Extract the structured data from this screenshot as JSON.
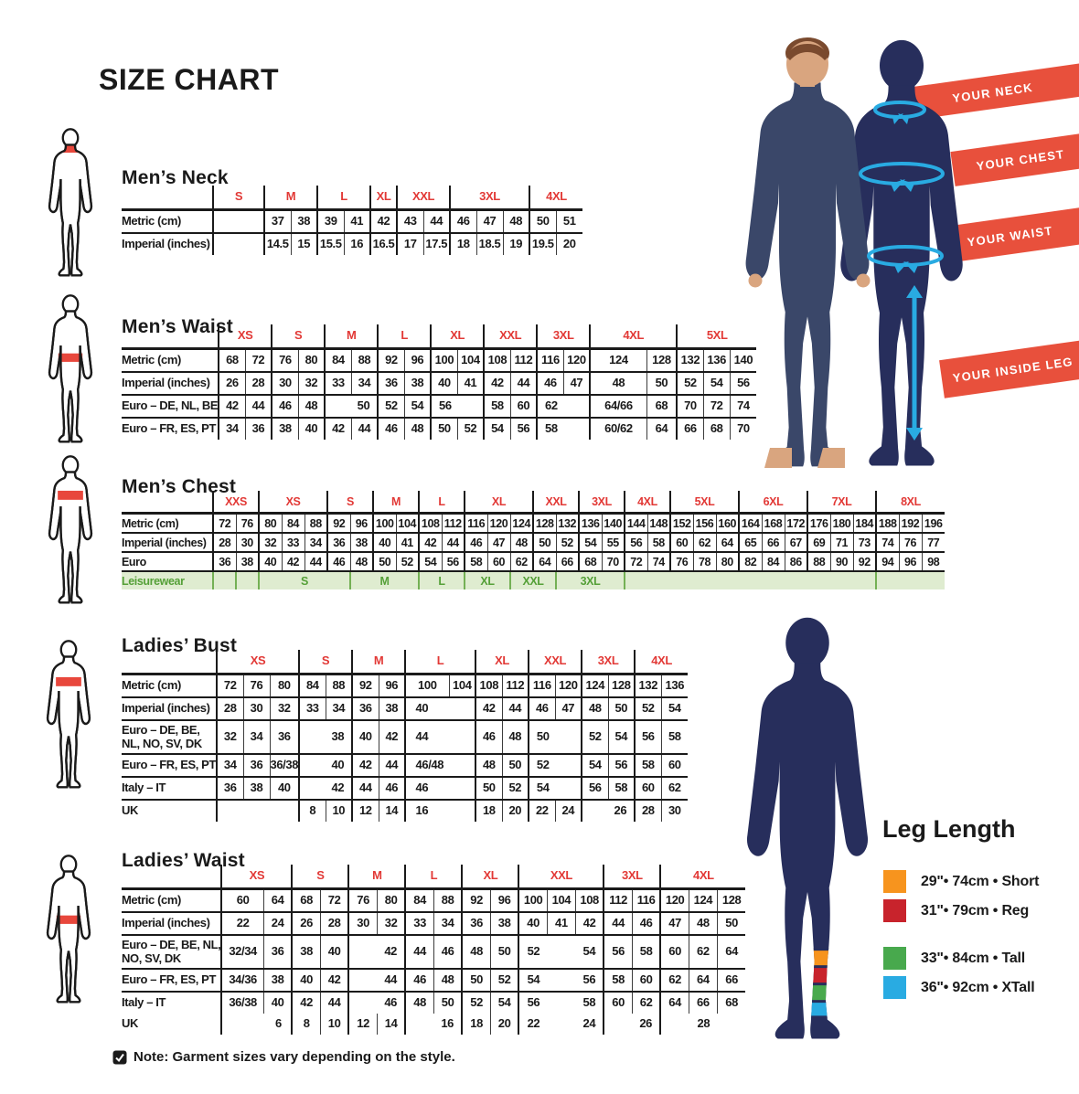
{
  "page_title": "SIZE CHART",
  "note_text": "Note: Garment sizes vary depending on the style.",
  "banners": [
    "YOUR NECK",
    "YOUR CHEST",
    "YOUR WAIST",
    "YOUR INSIDE LEG"
  ],
  "colors": {
    "table_header_red": "#e23936",
    "banner_red": "#e8503c",
    "leisure_green": "#55a038",
    "leisure_bg": "#dfecd0",
    "silhouette_navy": "#272e5c",
    "measure_cyan": "#29abe2"
  },
  "leg_length": {
    "title": "Leg Length",
    "items": [
      {
        "swatch": "orange-swatch",
        "color": "#F7941E",
        "label": "29\"• 74cm • Short"
      },
      {
        "swatch": "red-swatch",
        "color": "#C8232C",
        "label": "31\"• 79cm • Reg"
      },
      {
        "swatch": "green-swatch",
        "color": "#48A94D",
        "label": "33\"• 84cm • Tall"
      },
      {
        "swatch": "blue-swatch",
        "color": "#29ABE2",
        "label": "36\"• 92cm • XTall"
      }
    ]
  },
  "tables": [
    {
      "id": "mens-neck",
      "title": "Men’s Neck",
      "cls": "",
      "label_w": 100,
      "cols": [
        56,
        29,
        29,
        29,
        29,
        29,
        29,
        29,
        29,
        29,
        29,
        29,
        29
      ],
      "groups": [
        {
          "label": "S",
          "span": 1
        },
        {
          "label": "M",
          "span": 2
        },
        {
          "label": "L",
          "span": 2
        },
        {
          "label": "XL",
          "span": 1
        },
        {
          "label": "XXL",
          "span": 2
        },
        {
          "label": "3XL",
          "span": 3
        },
        {
          "label": "4XL",
          "span": 2
        }
      ],
      "rows": [
        {
          "label": "Metric (cm)",
          "cells": [
            "",
            "37",
            "38",
            "39",
            "41",
            "42",
            "43",
            "44",
            "46",
            "47",
            "48",
            "50",
            "51"
          ]
        },
        {
          "label": "Imperial (inches)",
          "cells": [
            "",
            "14.5",
            "15",
            "15.5",
            "16",
            "16.5",
            "17",
            "17.5",
            "18",
            "18.5",
            "19",
            "19.5",
            "20"
          ]
        }
      ]
    },
    {
      "id": "mens-waist",
      "title": "Men’s Waist",
      "cls": "",
      "label_w": 95,
      "cols": [
        29,
        29,
        29,
        29,
        29,
        29,
        29,
        29,
        29,
        29,
        29,
        29,
        29,
        29,
        62,
        33,
        29,
        29,
        29
      ],
      "groups": [
        {
          "label": "XS",
          "span": 2
        },
        {
          "label": "S",
          "span": 2
        },
        {
          "label": "M",
          "span": 2
        },
        {
          "label": "L",
          "span": 2
        },
        {
          "label": "XL",
          "span": 2
        },
        {
          "label": "XXL",
          "span": 2
        },
        {
          "label": "3XL",
          "span": 2
        },
        {
          "label": "4XL",
          "span": 2
        },
        {
          "label": "5XL",
          "span": 3
        }
      ],
      "rows": [
        {
          "label": "Metric (cm)",
          "cells": [
            "68",
            "72",
            "76",
            "80",
            "84",
            "88",
            "92",
            "96",
            "100",
            "104",
            "108",
            "112",
            "116",
            "120",
            "124",
            "128",
            "132",
            "136",
            "140"
          ]
        },
        {
          "label": "Imperial (inches)",
          "cells": [
            "26",
            "28",
            "30",
            "32",
            "33",
            "34",
            "36",
            "38",
            "40",
            "41",
            "42",
            "44",
            "46",
            "47",
            "48",
            "50",
            "52",
            "54",
            "56"
          ]
        },
        {
          "label": "Euro – DE, NL, BE",
          "cells": [
            "42",
            "44",
            "46",
            "48",
            {
              "t": "50",
              "s": 2,
              "a": "r"
            },
            "52",
            "54",
            {
              "t": "56",
              "s": 2,
              "a": "l"
            },
            "58",
            "60",
            {
              "t": "62",
              "s": 2,
              "a": "l"
            },
            "64/66",
            "68",
            "70",
            "72",
            "74"
          ]
        },
        {
          "label": "Euro – FR, ES, PT",
          "cells": [
            "34",
            "36",
            "38",
            "40",
            "42",
            "44",
            "46",
            "48",
            "50",
            "52",
            "54",
            "56",
            {
              "t": "58",
              "s": 2,
              "a": "l"
            },
            "60/62",
            "64",
            "66",
            "68",
            "70"
          ]
        }
      ]
    },
    {
      "id": "mens-chest",
      "title": "Men’s Chest",
      "cls": "small",
      "label_w": 100,
      "cols": [
        25,
        25,
        25,
        25,
        25,
        25,
        25,
        25,
        25,
        25,
        25,
        25,
        25,
        25,
        25,
        25,
        25,
        25,
        25,
        25,
        25,
        25,
        25,
        25,
        25,
        25,
        25,
        25,
        25,
        25,
        25,
        25
      ],
      "groups": [
        {
          "label": "XXS",
          "span": 2
        },
        {
          "label": "XS",
          "span": 3
        },
        {
          "label": "S",
          "span": 2
        },
        {
          "label": "M",
          "span": 2
        },
        {
          "label": "L",
          "span": 2
        },
        {
          "label": "XL",
          "span": 3
        },
        {
          "label": "XXL",
          "span": 2
        },
        {
          "label": "3XL",
          "span": 2
        },
        {
          "label": "4XL",
          "span": 2
        },
        {
          "label": "5XL",
          "span": 3
        },
        {
          "label": "6XL",
          "span": 3
        },
        {
          "label": "7XL",
          "span": 3
        },
        {
          "label": "8XL",
          "span": 3
        }
      ],
      "rows": [
        {
          "label": "Metric (cm)",
          "cells": [
            "72",
            "76",
            "80",
            "84",
            "88",
            "92",
            "96",
            "100",
            "104",
            "108",
            "112",
            "116",
            "120",
            "124",
            "128",
            "132",
            "136",
            "140",
            "144",
            "148",
            "152",
            "156",
            "160",
            "164",
            "168",
            "172",
            "176",
            "180",
            "184",
            "188",
            "192",
            "196"
          ]
        },
        {
          "label": "Imperial (inches)",
          "cells": [
            "28",
            "30",
            "32",
            "33",
            "34",
            "36",
            "38",
            "40",
            "41",
            "42",
            "44",
            "46",
            "47",
            "48",
            "50",
            "52",
            "54",
            "55",
            "56",
            "58",
            "60",
            "62",
            "64",
            "65",
            "66",
            "67",
            "69",
            "71",
            "73",
            "74",
            "76",
            "77"
          ]
        },
        {
          "label": "Euro",
          "cells": [
            "36",
            "38",
            "40",
            "42",
            "44",
            "46",
            "48",
            "50",
            "52",
            "54",
            "56",
            "58",
            "60",
            "62",
            "64",
            "66",
            "68",
            "70",
            "72",
            "74",
            "76",
            "78",
            "80",
            "82",
            "84",
            "86",
            "88",
            "90",
            "92",
            "94",
            "96",
            "98"
          ]
        },
        {
          "label": "Leisurewear",
          "cls": "leisure",
          "cells": [
            {
              "t": "",
              "s": 1
            },
            {
              "t": "",
              "s": 1
            },
            {
              "t": "S",
              "s": 4
            },
            {
              "t": "M",
              "s": 3
            },
            {
              "t": "L",
              "s": 2
            },
            {
              "t": "XL",
              "s": 2
            },
            {
              "t": "XXL",
              "s": 2
            },
            {
              "t": "3XL",
              "s": 3
            },
            {
              "t": "",
              "s": 11
            },
            {
              "t": "",
              "s": 3
            }
          ]
        }
      ]
    },
    {
      "id": "ladies-bust",
      "title": "Ladies’ Bust",
      "cls": "",
      "label_w": 97,
      "cols": [
        29,
        29,
        29,
        29,
        29,
        29,
        29,
        48,
        29,
        29,
        29,
        29,
        29,
        29,
        29,
        29,
        29
      ],
      "groups": [
        {
          "label": "XS",
          "span": 3
        },
        {
          "label": "S",
          "span": 2
        },
        {
          "label": "M",
          "span": 2
        },
        {
          "label": "L",
          "span": 2
        },
        {
          "label": "XL",
          "span": 2
        },
        {
          "label": "XXL",
          "span": 2
        },
        {
          "label": "3XL",
          "span": 2
        },
        {
          "label": "4XL",
          "span": 2
        }
      ],
      "rows": [
        {
          "label": "Metric (cm)",
          "cells": [
            "72",
            "76",
            "80",
            "84",
            "88",
            "92",
            "96",
            "100",
            "104",
            "108",
            "112",
            "116",
            "120",
            "124",
            "128",
            "132",
            "136"
          ]
        },
        {
          "label": "Imperial (inches)",
          "cells": [
            "28",
            "30",
            "32",
            "33",
            "34",
            "36",
            "38",
            {
              "t": "40",
              "s": 2,
              "a": "l"
            },
            "42",
            "44",
            "46",
            "47",
            "48",
            "50",
            "52",
            "54"
          ]
        },
        {
          "label": "Euro –  DE, BE,\nNL, NO, SV, DK",
          "cells": [
            "32",
            "34",
            "36",
            {
              "t": "38",
              "s": 2,
              "a": "r"
            },
            "40",
            "42",
            {
              "t": "44",
              "s": 2,
              "a": "l"
            },
            "46",
            "48",
            {
              "t": "50",
              "s": 2,
              "a": "l"
            },
            "52",
            "54",
            "56",
            "58"
          ]
        },
        {
          "label": "Euro – FR, ES, PT",
          "cells": [
            "34",
            "36",
            "36/38",
            {
              "t": "40",
              "s": 2,
              "a": "r"
            },
            "42",
            "44",
            {
              "t": "46/48",
              "s": 2,
              "a": "l"
            },
            "48",
            "50",
            {
              "t": "52",
              "s": 2,
              "a": "l"
            },
            "54",
            "56",
            "58",
            "60"
          ]
        },
        {
          "label": "Italy – IT",
          "cells": [
            "36",
            "38",
            "40",
            {
              "t": "42",
              "s": 2,
              "a": "r"
            },
            "44",
            "46",
            {
              "t": "46",
              "s": 2,
              "a": "l"
            },
            "50",
            "52",
            {
              "t": "54",
              "s": 2,
              "a": "l"
            },
            "56",
            "58",
            "60",
            "62"
          ]
        },
        {
          "label": "UK",
          "cells": [
            {
              "t": "",
              "s": 3
            },
            "8",
            "10",
            "12",
            "14",
            {
              "t": "16",
              "s": 2,
              "a": "l"
            },
            "18",
            "20",
            "22",
            "24",
            {
              "t": "26",
              "s": 2,
              "a": "r"
            },
            "28",
            "30"
          ]
        }
      ]
    },
    {
      "id": "ladies-waist",
      "title": "Ladies’ Waist",
      "cls": "",
      "label_w": 92,
      "cols": [
        46,
        31,
        31,
        31,
        31,
        31,
        31,
        31,
        31,
        31,
        31,
        31,
        31,
        31,
        31,
        31,
        31,
        31
      ],
      "groups": [
        {
          "label": "XS",
          "span": 2
        },
        {
          "label": "S",
          "span": 2
        },
        {
          "label": "M",
          "span": 2
        },
        {
          "label": "L",
          "span": 2
        },
        {
          "label": "XL",
          "span": 2
        },
        {
          "label": "XXL",
          "span": 3
        },
        {
          "label": "3XL",
          "span": 2
        },
        {
          "label": "4XL",
          "span": 3
        }
      ],
      "rows": [
        {
          "label": "Metric (cm)",
          "cells": [
            "60",
            "64",
            "68",
            "72",
            "76",
            "80",
            "84",
            "88",
            "92",
            "96",
            "100",
            "104",
            "108",
            "112",
            "116",
            "120",
            "124",
            "128"
          ]
        },
        {
          "label": "Imperial (inches)",
          "cells": [
            "22",
            "24",
            "26",
            "28",
            "30",
            "32",
            "33",
            "34",
            "36",
            "38",
            "40",
            "41",
            "42",
            "44",
            "46",
            "47",
            "48",
            "50"
          ]
        },
        {
          "label": "Euro – DE, BE, NL,\nNO, SV, DK",
          "cells": [
            "32/34",
            "36",
            "38",
            "40",
            {
              "t": "42",
              "s": 2,
              "a": "r"
            },
            "44",
            "46",
            "48",
            "50",
            {
              "t": "52|54",
              "s": 3,
              "a": "j"
            },
            "56",
            "58",
            "60",
            "62",
            "64"
          ]
        },
        {
          "label": "Euro – FR, ES, PT",
          "cells": [
            "34/36",
            "38",
            "40",
            "42",
            {
              "t": "44",
              "s": 2,
              "a": "r"
            },
            "46",
            "48",
            "50",
            "52",
            {
              "t": "54|56",
              "s": 3,
              "a": "j"
            },
            "58",
            "60",
            "62",
            "64",
            "66"
          ]
        },
        {
          "label": "Italy – IT",
          "cls": "nb",
          "cells": [
            "36/38",
            "40",
            "42",
            "44",
            {
              "t": "46",
              "s": 2,
              "a": "r"
            },
            "48",
            "50",
            "52",
            "54",
            {
              "t": "56|58",
              "s": 3,
              "a": "j"
            },
            "60",
            "62",
            "64",
            "66",
            "68"
          ]
        },
        {
          "label": "UK",
          "cells": [
            {
              "t": "6",
              "s": 2,
              "a": "r"
            },
            "8",
            "10",
            "12",
            "14",
            {
              "t": "16",
              "s": 2,
              "a": "r"
            },
            "18",
            "20",
            {
              "t": "22|24",
              "s": 3,
              "a": "j"
            },
            {
              "t": "26",
              "s": 2,
              "a": "r"
            },
            {
              "t": "28",
              "s": 3
            }
          ]
        }
      ]
    }
  ]
}
